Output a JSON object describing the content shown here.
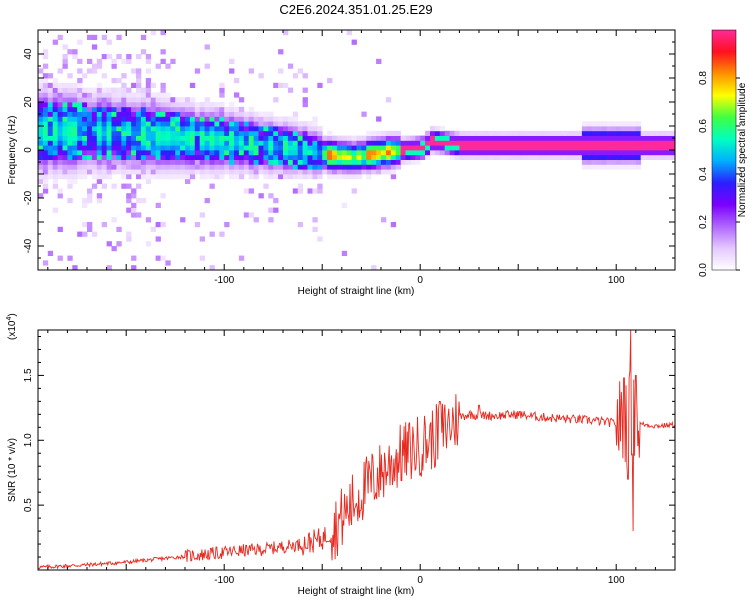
{
  "title": "C2E6.2024.351.01.25.E29",
  "colors": {
    "snr_line": "#e8281e",
    "colormap": [
      "#ffffff",
      "#e4c8ff",
      "#b066ff",
      "#7a00ff",
      "#2a20ff",
      "#00b0ff",
      "#00ffc0",
      "#40ff40",
      "#ffff00",
      "#ff9000",
      "#ff1020",
      "#ff2a9a"
    ]
  },
  "chart_data": [
    {
      "type": "heatmap",
      "title": "C2E6.2024.351.01.25.E29",
      "xlabel": "Height of straight line (km)",
      "ylabel": "Frequency (Hz)",
      "xlim": [
        -195,
        130
      ],
      "ylim": [
        -50,
        50
      ],
      "x_ticks": [
        -100,
        0,
        100
      ],
      "y_ticks": [
        -40,
        -20,
        0,
        20,
        40
      ],
      "colorbar": {
        "label": "Normalized spectral amplitude",
        "range": [
          0.0,
          1.0
        ],
        "ticks": [
          "0.0",
          "0.2",
          "0.4",
          "0.6",
          "0.8"
        ]
      },
      "ridge": {
        "description_points": [
          {
            "x": -190,
            "y": 8
          },
          {
            "x": -150,
            "y": 7
          },
          {
            "x": -120,
            "y": 5
          },
          {
            "x": -100,
            "y": 4
          },
          {
            "x": -80,
            "y": 2
          },
          {
            "x": -60,
            "y": 0
          },
          {
            "x": -48,
            "y": -2
          },
          {
            "x": -35,
            "y": -3
          },
          {
            "x": -20,
            "y": -1
          },
          {
            "x": -10,
            "y": 0
          },
          {
            "x": 0,
            "y": 1
          },
          {
            "x": 5,
            "y": 4
          },
          {
            "x": 20,
            "y": 2
          },
          {
            "x": 50,
            "y": 2
          },
          {
            "x": 100,
            "y": 2
          },
          {
            "x": 130,
            "y": 2
          }
        ]
      }
    },
    {
      "type": "line",
      "xlabel": "Height of straight line (km)",
      "ylabel": "SNR (10 * v/v)",
      "y_multiplier": "(x10",
      "y_multiplier_exp": "4",
      "y_multiplier_close": ")",
      "xlim": [
        -195,
        130
      ],
      "ylim": [
        0,
        1.85
      ],
      "x_ticks": [
        -100,
        0,
        100
      ],
      "y_ticks": [
        0.5,
        1.0,
        1.5
      ],
      "y_tick_labels": [
        "0.5",
        "1.0",
        "1.5"
      ],
      "series": [
        {
          "x": [
            -195,
            -170,
            -150,
            -130,
            -110,
            -90,
            -80,
            -70,
            -60,
            -50,
            -45,
            -40,
            -35,
            -30,
            -25,
            -20,
            -15,
            -10,
            -5,
            0,
            5,
            10,
            15,
            20,
            25,
            30,
            40,
            50,
            60,
            70,
            80,
            90,
            95,
            100,
            104,
            107,
            110,
            115,
            120,
            130
          ],
          "y": [
            0.02,
            0.04,
            0.06,
            0.09,
            0.12,
            0.15,
            0.16,
            0.18,
            0.2,
            0.24,
            0.3,
            0.4,
            0.5,
            0.6,
            0.68,
            0.75,
            0.82,
            0.88,
            0.92,
            0.96,
            1.0,
            1.05,
            1.12,
            1.18,
            1.2,
            1.19,
            1.19,
            1.2,
            1.18,
            1.17,
            1.16,
            1.15,
            1.14,
            1.13,
            1.15,
            1.2,
            1.13,
            1.12,
            1.11,
            1.12
          ],
          "spikes": [
            {
              "x": 104,
              "y": 1.48
            },
            {
              "x": 106,
              "y": 0.7
            },
            {
              "x": 107.5,
              "y": 1.85
            },
            {
              "x": 108.5,
              "y": 0.3
            },
            {
              "x": 110,
              "y": 1.5
            },
            {
              "x": 30,
              "y": 1.27
            },
            {
              "x": 10,
              "y": 1.3
            }
          ]
        }
      ]
    }
  ]
}
